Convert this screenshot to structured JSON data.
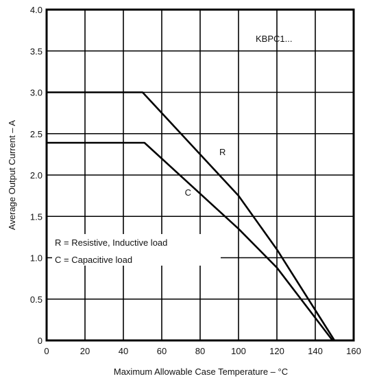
{
  "chart_data": {
    "type": "line",
    "xlabel": "Maximum Allowable Case Temperature – °C",
    "ylabel": "Average Output Current – A",
    "xlim": [
      0,
      160
    ],
    "ylim": [
      0,
      4.0
    ],
    "x_ticks": [
      "0",
      "20",
      "40",
      "60",
      "80",
      "100",
      "120",
      "140",
      "160"
    ],
    "y_ticks": [
      "0",
      "0.5",
      "1.0",
      "1.5",
      "2.0",
      "2.5",
      "3.0",
      "3.5",
      "4.0"
    ],
    "grid": true,
    "part_label": "KBPC1...",
    "notes": [
      "R = Resistive, Inductive load",
      "C = Capacitive load"
    ],
    "series": [
      {
        "name": "R",
        "x": [
          0,
          50,
          100,
          120,
          150
        ],
        "y": [
          3.0,
          3.0,
          1.75,
          1.1,
          0
        ]
      },
      {
        "name": "C",
        "x": [
          0,
          51,
          100,
          120,
          149
        ],
        "y": [
          2.39,
          2.39,
          1.35,
          0.88,
          0
        ]
      }
    ]
  }
}
